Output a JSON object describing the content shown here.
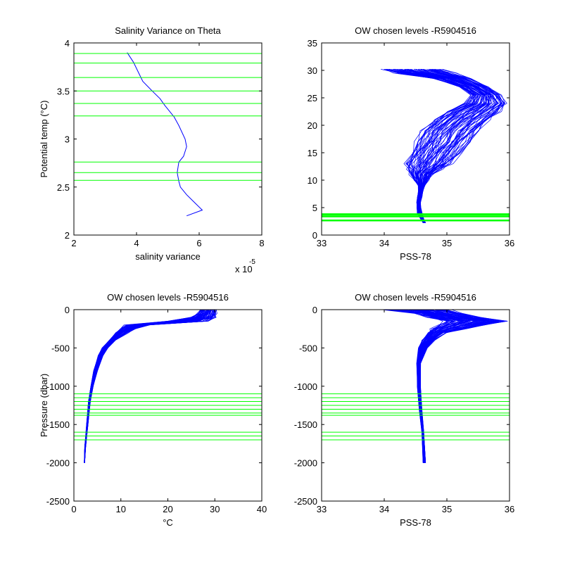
{
  "colors": {
    "profile": "#0000ff",
    "levels": "#00ff00",
    "axes": "#000000",
    "background": "#ffffff"
  },
  "chart_data": [
    {
      "id": "p1",
      "type": "line",
      "title": "Salinity Variance on Theta",
      "xlabel": "salinity variance",
      "ylabel": "Potential temp (°C)",
      "xlim": [
        2,
        8
      ],
      "ylim": [
        2,
        4
      ],
      "xticks": [
        2,
        4,
        6,
        8
      ],
      "xtick_labels": [
        "2",
        "4",
        "6",
        "8"
      ],
      "yticks": [
        2,
        2.5,
        3,
        3.5,
        4
      ],
      "ytick_labels": [
        "2",
        "2.5",
        "3",
        "3.5",
        "4"
      ],
      "x_exponent_label": "x 10",
      "x_exponent_value": "-5",
      "series": [
        {
          "x": [
            3.7,
            3.9,
            4.05,
            4.2,
            4.5,
            4.75,
            4.9,
            5.2,
            5.35,
            5.55,
            5.6,
            5.5,
            5.35,
            5.3,
            5.35,
            5.4,
            5.6,
            5.85,
            6.1,
            5.6
          ],
          "y": [
            3.9,
            3.8,
            3.7,
            3.6,
            3.5,
            3.42,
            3.35,
            3.23,
            3.14,
            3.0,
            2.92,
            2.82,
            2.76,
            2.65,
            2.56,
            2.5,
            2.42,
            2.34,
            2.26,
            2.2
          ]
        }
      ],
      "hlines": [
        3.89,
        3.79,
        3.64,
        3.5,
        3.37,
        3.24,
        2.76,
        2.65,
        2.57
      ]
    },
    {
      "id": "p2",
      "type": "line",
      "title": "OW chosen levels -R5904516",
      "xlabel": "PSS-78",
      "ylabel": "",
      "xlim": [
        33,
        36
      ],
      "ylim": [
        0,
        35
      ],
      "xticks": [
        33,
        34,
        35,
        36
      ],
      "xtick_labels": [
        "33",
        "34",
        "35",
        "36"
      ],
      "yticks": [
        0,
        5,
        10,
        15,
        20,
        25,
        30,
        35
      ],
      "ytick_labels": [
        "0",
        "5",
        "10",
        "15",
        "20",
        "25",
        "30",
        "35"
      ],
      "envelope": {
        "temps": [
          2.2,
          3,
          4,
          5,
          6,
          7,
          8,
          9,
          10,
          11,
          12,
          13,
          15,
          17,
          19,
          21,
          22.5,
          24,
          25.5,
          27,
          28.5,
          29.5,
          30.2
        ],
        "sal_lo": [
          34.62,
          34.58,
          34.53,
          34.52,
          34.52,
          34.53,
          34.55,
          34.55,
          34.48,
          34.42,
          34.38,
          34.35,
          34.42,
          34.5,
          34.6,
          34.8,
          35.0,
          35.3,
          35.4,
          35.2,
          34.8,
          34.2,
          33.95
        ],
        "sal_hi": [
          34.66,
          34.63,
          34.6,
          34.58,
          34.58,
          34.6,
          34.62,
          34.65,
          34.7,
          34.75,
          34.9,
          35.05,
          35.2,
          35.35,
          35.5,
          35.7,
          35.85,
          35.95,
          35.85,
          35.65,
          35.35,
          35.1,
          34.9
        ]
      },
      "hlines": [
        3.9,
        3.8,
        3.7,
        3.64,
        3.5,
        3.4,
        3.37,
        3.3,
        2.76,
        2.65,
        2.57
      ]
    },
    {
      "id": "p3",
      "type": "line",
      "title": "OW chosen levels -R5904516",
      "xlabel": "°C",
      "ylabel": "Pressure (dbar)",
      "xlim": [
        0,
        40
      ],
      "ylim": [
        -2500,
        0
      ],
      "xticks": [
        0,
        10,
        20,
        30,
        40
      ],
      "xtick_labels": [
        "0",
        "10",
        "20",
        "30",
        "40"
      ],
      "yticks": [
        0,
        -500,
        -1000,
        -1500,
        -2000,
        -2500
      ],
      "ytick_labels": [
        "0",
        "-500",
        "-1000",
        "-1500",
        "-2000",
        "-2500"
      ],
      "envelope": {
        "pres": [
          0,
          -50,
          -100,
          -150,
          -200,
          -250,
          -300,
          -400,
          -500,
          -600,
          -800,
          -1000,
          -1200,
          -1500,
          -1800,
          -2000
        ],
        "val_lo": [
          27,
          26.5,
          25,
          20,
          11,
          10,
          9,
          7.5,
          6,
          5.2,
          4.2,
          3.6,
          3.1,
          2.7,
          2.3,
          2.2
        ],
        "val_hi": [
          30.3,
          30.2,
          30,
          28.5,
          16,
          13,
          11.5,
          8.8,
          7.2,
          6.2,
          5,
          4.1,
          3.5,
          3.0,
          2.5,
          2.3
        ]
      },
      "hlines": [
        -1100,
        -1150,
        -1200,
        -1250,
        -1300,
        -1350,
        -1380,
        -1600,
        -1650,
        -1700
      ]
    },
    {
      "id": "p4",
      "type": "line",
      "title": "OW chosen levels -R5904516",
      "xlabel": "PSS-78",
      "ylabel": "",
      "xlim": [
        33,
        36
      ],
      "ylim": [
        -2500,
        0
      ],
      "xticks": [
        33,
        34,
        35,
        36
      ],
      "xtick_labels": [
        "33",
        "34",
        "35",
        "36"
      ],
      "yticks": [
        0,
        -500,
        -1000,
        -1500,
        -2000,
        -2500
      ],
      "ytick_labels": [
        "0",
        "-500",
        "-1000",
        "-1500",
        "-2000",
        "-2500"
      ],
      "envelope": {
        "pres": [
          0,
          -50,
          -100,
          -150,
          -200,
          -250,
          -300,
          -400,
          -500,
          -700,
          -1000,
          -1300,
          -1600,
          -2000
        ],
        "val_lo": [
          34.0,
          34.5,
          34.7,
          35.0,
          34.85,
          34.75,
          34.7,
          34.6,
          34.55,
          34.52,
          34.53,
          34.56,
          34.6,
          34.62
        ],
        "val_hi": [
          35.0,
          35.2,
          35.5,
          35.95,
          35.6,
          35.3,
          35.0,
          34.8,
          34.68,
          34.58,
          34.58,
          34.6,
          34.63,
          34.66
        ]
      },
      "hlines": [
        -1100,
        -1150,
        -1200,
        -1250,
        -1300,
        -1350,
        -1380,
        -1600,
        -1650,
        -1700
      ]
    }
  ]
}
